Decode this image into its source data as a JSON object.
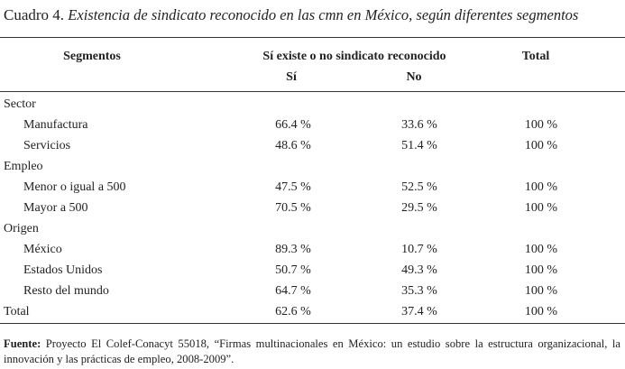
{
  "title": {
    "label": "Cuadro 4.",
    "text": "Existencia de sindicato reconocido en las cmn en México, según diferentes segmentos"
  },
  "table": {
    "header": {
      "segments": "Segmentos",
      "group": "Sí existe o no sindicato reconocido",
      "si": "Sí",
      "no": "No",
      "total": "Total"
    },
    "sections": [
      {
        "label": "Sector",
        "rows": [
          {
            "label": "Manufactura",
            "cells": [
              "66.4 %",
              "33.6 %",
              "100 %"
            ]
          },
          {
            "label": "Servicios",
            "cells": [
              "48.6 %",
              "51.4 %",
              "100 %"
            ]
          }
        ]
      },
      {
        "label": "Empleo",
        "rows": [
          {
            "label": "Menor o igual a 500",
            "cells": [
              "47.5 %",
              "52.5 %",
              "100 %"
            ]
          },
          {
            "label": "Mayor a 500",
            "cells": [
              "70.5 %",
              "29.5 %",
              "100 %"
            ]
          }
        ]
      },
      {
        "label": "Origen",
        "rows": [
          {
            "label": "México",
            "cells": [
              "89.3 %",
              "10.7 %",
              "100 %"
            ]
          },
          {
            "label": "Estados Unidos",
            "cells": [
              "50.7 %",
              "49.3 %",
              "100 %"
            ]
          },
          {
            "label": "Resto del mundo",
            "cells": [
              "64.7 %",
              "35.3 %",
              "100 %"
            ]
          }
        ]
      }
    ],
    "total": {
      "label": "Total",
      "cells": [
        "62.6 %",
        "37.4 %",
        "100 %"
      ]
    }
  },
  "footnote": {
    "label": "Fuente:",
    "text": "Proyecto El Colef-Conacyt 55018, “Firmas multinacionales en México: un estudio sobre la estructura organizacional, la innovación y las prácticas de empleo, 2008-2009”."
  }
}
